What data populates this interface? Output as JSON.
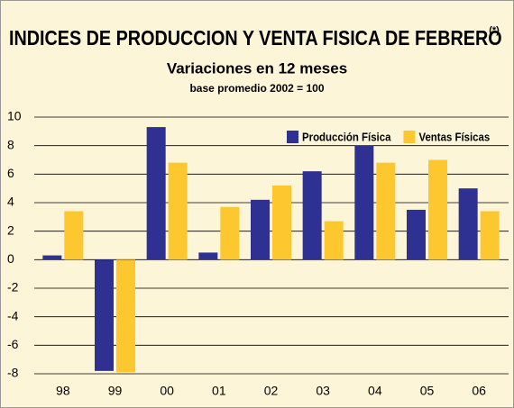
{
  "chart_data": {
    "type": "bar",
    "title": "INDICES DE PRODUCCION Y VENTA FISICA DE FEBRERO",
    "title_superscript": "(*)",
    "subtitle": "Variaciones en 12 meses",
    "note": "base promedio 2002 = 100",
    "categories": [
      "98",
      "99",
      "00",
      "01",
      "02",
      "03",
      "04",
      "05",
      "06"
    ],
    "series": [
      {
        "name": "Producción Física",
        "color": "#2e3192",
        "values": [
          0.3,
          -7.8,
          9.3,
          0.5,
          4.2,
          6.2,
          8.0,
          3.5,
          5.0
        ]
      },
      {
        "name": "Ventas Físicas",
        "color": "#fdc82f",
        "values": [
          3.4,
          -7.9,
          6.8,
          3.7,
          5.2,
          2.7,
          6.8,
          7.0,
          3.4
        ]
      }
    ],
    "ylim": [
      -8,
      10
    ],
    "yticks": [
      -8,
      -6,
      -4,
      -2,
      0,
      2,
      4,
      6,
      8,
      10
    ],
    "grid": true,
    "legend": "top-right"
  }
}
